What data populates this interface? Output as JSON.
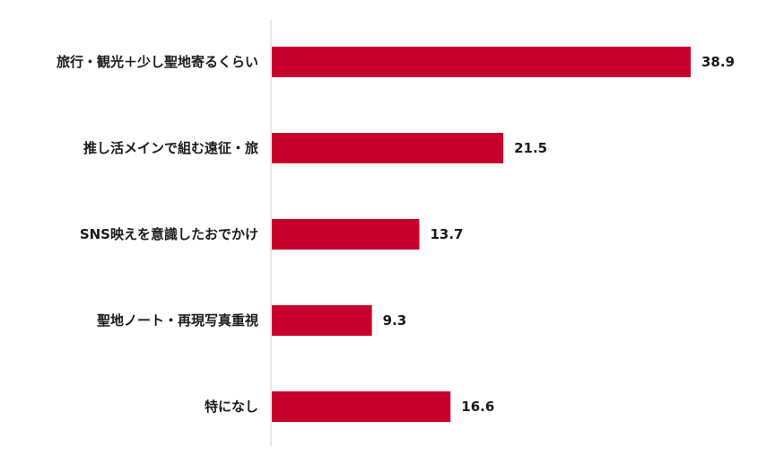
{
  "chart_data": {
    "type": "bar",
    "orientation": "horizontal",
    "categories": [
      "旅行・観光＋少し聖地寄るくらい",
      "推し活メインで組む遠征・旅",
      "SNS映えを意識したおでかけ",
      "聖地ノート・再現写真重視",
      "特になし"
    ],
    "values": [
      38.9,
      21.5,
      13.7,
      9.3,
      16.6
    ],
    "bar_color": "#c8002d",
    "axis_color": "#d0d0d0",
    "title": "",
    "xlabel": "",
    "ylabel": "",
    "grid": false,
    "legend": false
  }
}
